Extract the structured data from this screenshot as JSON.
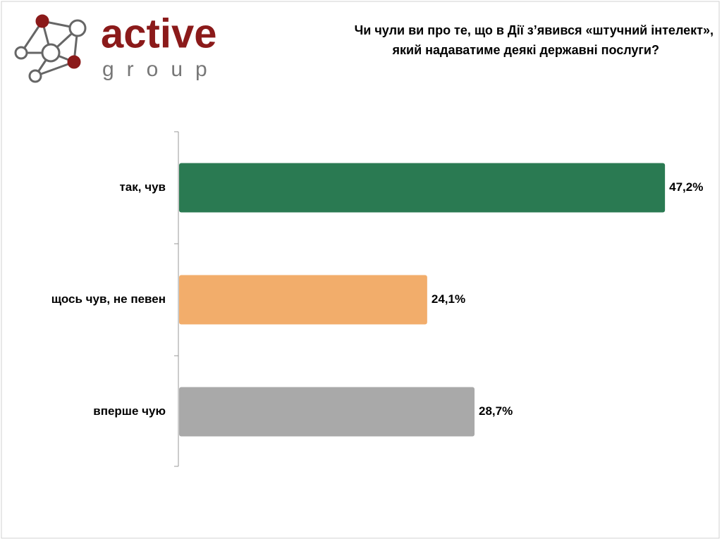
{
  "logo": {
    "name": "active",
    "tagline": "group"
  },
  "chart_data": {
    "type": "barh",
    "title": [
      "Чи чули ви про те, що в Дії з’явився «штучний інтелект»,",
      "який надаватиме деякі державні послуги?"
    ],
    "categories": [
      "так, чув",
      "щось чув, не певен",
      "вперше чую"
    ],
    "values": [
      47.2,
      24.1,
      28.7
    ],
    "value_labels": [
      "47,2%",
      "24,1%",
      "28,7%"
    ],
    "colors": [
      "#2a7a52",
      "#f2ad6b",
      "#a9a9a9"
    ],
    "xlim": [
      0,
      50
    ]
  }
}
